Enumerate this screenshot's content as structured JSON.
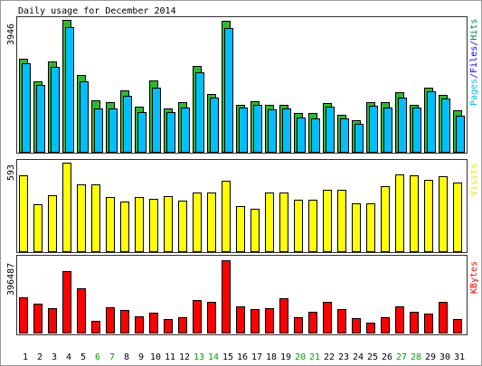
{
  "title": "Daily usage for December 2014",
  "colors": {
    "hits": "#2eb82e",
    "files": "#0000ff",
    "pages": "#00bfff",
    "visits": "#ffff00",
    "kbytes": "#ff0000",
    "weekend_label": "#00a000",
    "weekday_label": "#000000",
    "hits_label": "#00805c",
    "pages_label": "#00c0ff",
    "files_label": "#0000ff",
    "visits_label": "#e8e800",
    "kbytes_label": "#ff0000"
  },
  "legend": {
    "files": "Files",
    "separator": "/"
  },
  "axis_max_labels": {
    "hits": "3946",
    "visits": "593",
    "kbytes": "396487"
  },
  "weekend_days": [
    "6",
    "7",
    "13",
    "14",
    "20",
    "21",
    "27",
    "28"
  ],
  "chart_data": [
    {
      "type": "bar",
      "categories": [
        "1",
        "2",
        "3",
        "4",
        "5",
        "6",
        "7",
        "8",
        "9",
        "10",
        "11",
        "12",
        "13",
        "14",
        "15",
        "16",
        "17",
        "18",
        "19",
        "20",
        "21",
        "22",
        "23",
        "24",
        "25",
        "26",
        "27",
        "28",
        "29",
        "30",
        "31"
      ],
      "series": [
        {
          "name": "Hits",
          "values": [
            2780,
            2105,
            2700,
            3946,
            2300,
            1540,
            1485,
            1840,
            1350,
            2135,
            1300,
            1485,
            2570,
            1730,
            3925,
            1405,
            1515,
            1405,
            1405,
            1160,
            1160,
            1460,
            1110,
            945,
            1485,
            1485,
            1785,
            1405,
            1920,
            1700,
            1245
          ]
        },
        {
          "name": "Pages",
          "values": [
            2650,
            2000,
            2540,
            3730,
            2110,
            1300,
            1300,
            1680,
            1190,
            1920,
            1190,
            1325,
            2380,
            1620,
            3700,
            1325,
            1405,
            1270,
            1300,
            1030,
            1000,
            1350,
            1000,
            840,
            1380,
            1325,
            1620,
            1325,
            1810,
            1600,
            1080
          ]
        }
      ],
      "ylim": [
        0,
        3946
      ]
    },
    {
      "type": "bar",
      "categories": [
        "1",
        "2",
        "3",
        "4",
        "5",
        "6",
        "7",
        "8",
        "9",
        "10",
        "11",
        "12",
        "13",
        "14",
        "15",
        "16",
        "17",
        "18",
        "19",
        "20",
        "21",
        "22",
        "23",
        "24",
        "25",
        "26",
        "27",
        "28",
        "29",
        "30",
        "31"
      ],
      "series": [
        {
          "name": "Visits",
          "values": [
            508,
            315,
            375,
            593,
            448,
            448,
            363,
            333,
            363,
            351,
            369,
            339,
            393,
            393,
            472,
            303,
            284,
            393,
            393,
            345,
            345,
            411,
            411,
            321,
            321,
            436,
            514,
            508,
            478,
            502,
            460
          ]
        }
      ],
      "ylim": [
        0,
        593
      ]
    },
    {
      "type": "bar",
      "categories": [
        "1",
        "2",
        "3",
        "4",
        "5",
        "6",
        "7",
        "8",
        "9",
        "10",
        "11",
        "12",
        "13",
        "14",
        "15",
        "16",
        "17",
        "18",
        "19",
        "20",
        "21",
        "22",
        "23",
        "24",
        "25",
        "26",
        "27",
        "28",
        "29",
        "30",
        "31"
      ],
      "series": [
        {
          "name": "KBytes",
          "values": [
            193300,
            158600,
            133800,
            337000,
            242800,
            64400,
            138800,
            123900,
            89200,
            109000,
            74300,
            84300,
            178400,
            168500,
            396487,
            143700,
            128900,
            133800,
            188300,
            84300,
            114000,
            168500,
            128900,
            79300,
            54500,
            84300,
            143700,
            114000,
            104100,
            168500,
            74300
          ]
        }
      ],
      "ylim": [
        0,
        396487
      ]
    }
  ]
}
